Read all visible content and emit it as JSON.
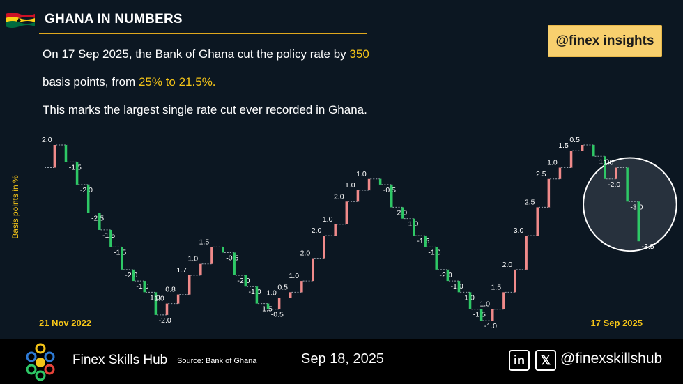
{
  "header": {
    "title": "GHANA IN NUMBERS",
    "flag_colors": [
      "#ce1126",
      "#fcd116",
      "#006b3f"
    ],
    "line1_pre": "On 17 Sep 2025, the Bank of Ghana cut the policy rate by ",
    "line1_hl": "350",
    "line2_pre": "basis points, from ",
    "line2_hl": "25% to 21.5%.",
    "line3": "This marks the largest single rate cut ever recorded in Ghana."
  },
  "badge": {
    "text": "@finex insights"
  },
  "colors": {
    "accent": "#f5c518",
    "increase": "#f08a8a",
    "decrease": "#2ec866",
    "background": "#0c1722"
  },
  "chart_data": {
    "type": "waterfall",
    "ylabel": "Basis points in %",
    "x_start_label": "21 Nov 2022",
    "x_end_label": "17 Sep 2025",
    "steps": [
      {
        "v": 2.0,
        "label": "2.0"
      },
      {
        "v": -1.5,
        "label": "-1.5"
      },
      {
        "v": -2.0,
        "label": "-2.0"
      },
      {
        "v": -2.5,
        "label": "-2.5"
      },
      {
        "v": -1.5,
        "label": "-1.5"
      },
      {
        "v": -1.5,
        "label": "-1.5"
      },
      {
        "v": -2.0,
        "label": "-2.0"
      },
      {
        "v": -1.0,
        "label": "-1.0"
      },
      {
        "v": -1.0,
        "label": "-1.0"
      },
      {
        "v": -2.0,
        "label": "-2.0"
      },
      {
        "v": 1.0,
        "label": "1.0"
      },
      {
        "v": 0.8,
        "label": "0.8"
      },
      {
        "v": 1.7,
        "label": "1.7"
      },
      {
        "v": 1.0,
        "label": "1.0"
      },
      {
        "v": 1.5,
        "label": "1.5"
      },
      {
        "v": -0.5,
        "label": "-0.5"
      },
      {
        "v": -2.0,
        "label": "-2.0"
      },
      {
        "v": -1.0,
        "label": "-1.0"
      },
      {
        "v": -1.5,
        "label": "-1.5"
      },
      {
        "v": -0.5,
        "label": "-0.5"
      },
      {
        "v": 1.0,
        "label": "1.0"
      },
      {
        "v": 0.5,
        "label": "0.5"
      },
      {
        "v": 1.0,
        "label": "1.0"
      },
      {
        "v": 2.0,
        "label": "2.0"
      },
      {
        "v": 2.0,
        "label": "2.0"
      },
      {
        "v": 1.0,
        "label": "1.0"
      },
      {
        "v": 2.0,
        "label": "2.0"
      },
      {
        "v": 1.0,
        "label": "1.0"
      },
      {
        "v": 1.0,
        "label": "1.0"
      },
      {
        "v": -0.5,
        "label": "-0.5"
      },
      {
        "v": -2.0,
        "label": "-2.0"
      },
      {
        "v": -1.0,
        "label": "-1.0"
      },
      {
        "v": -1.5,
        "label": "-1.5"
      },
      {
        "v": -1.0,
        "label": "-1.0"
      },
      {
        "v": -2.0,
        "label": "-2.0"
      },
      {
        "v": -1.0,
        "label": "-1.0"
      },
      {
        "v": -1.0,
        "label": "-1.0"
      },
      {
        "v": -1.5,
        "label": "-1.5"
      },
      {
        "v": -1.0,
        "label": "-1.0"
      },
      {
        "v": 1.0,
        "label": "1.0"
      },
      {
        "v": 1.5,
        "label": "1.5"
      },
      {
        "v": 2.0,
        "label": "2.0"
      },
      {
        "v": 3.0,
        "label": "3.0"
      },
      {
        "v": 2.5,
        "label": "2.5"
      },
      {
        "v": 2.5,
        "label": "2.5"
      },
      {
        "v": 1.0,
        "label": "1.0"
      },
      {
        "v": 1.5,
        "label": "1.5"
      },
      {
        "v": 0.5,
        "label": "0.5"
      },
      {
        "v": -1.0,
        "label": "-1.0"
      },
      {
        "v": -2.0,
        "label": "-2.0"
      },
      {
        "v": 1.0,
        "label": "1.0"
      },
      {
        "v": -3.0,
        "label": "-3.0"
      },
      {
        "v": -3.5,
        "label": "-3.5"
      }
    ],
    "highlight_last": 2,
    "grid": false
  },
  "footer": {
    "brand": "Finex Skills Hub",
    "source": "Source: Bank of Ghana",
    "date": "Sep 18, 2025",
    "linkedin_icon_text": "in",
    "x_icon_text": "𝕏",
    "handle": "@finexskillshub",
    "logo_colors": [
      "#f5c518",
      "#2e7bd6",
      "#2ec866",
      "#e8443a",
      "#ffffff"
    ]
  }
}
